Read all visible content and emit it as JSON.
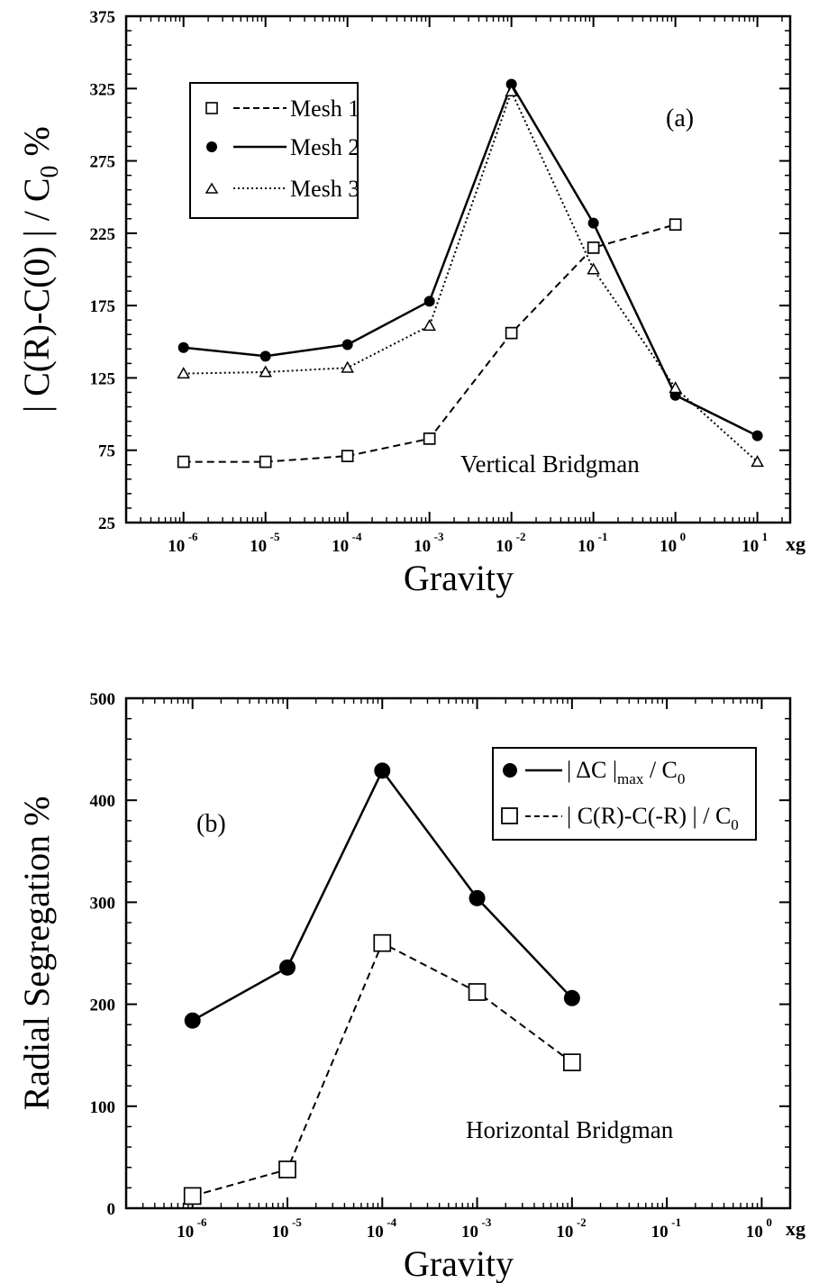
{
  "chart_data": [
    {
      "type": "line",
      "panel_label": "(a)",
      "xlabel": "Gravity",
      "x_unit": "xg",
      "ylabel": "| C(R)-C(0) | / C",
      "ylabel_subscript": "0",
      "ylabel_suffix": " %",
      "x_scale": "log",
      "xlim_exp": [
        -6.7,
        1.4
      ],
      "ylim": [
        25,
        375
      ],
      "x_tick_exponents": [
        "-6",
        "-5",
        "-4",
        "-3",
        "-2",
        "-1",
        "0",
        "1"
      ],
      "y_ticks": [
        "25",
        "75",
        "125",
        "175",
        "225",
        "275",
        "325",
        "375"
      ],
      "annotation": "Vertical Bridgman",
      "legend_position": "top-left",
      "series": [
        {
          "name": "Mesh 1",
          "marker": "open-square",
          "line": "dashed",
          "x_exp": [
            -6,
            -5,
            -4,
            -3,
            -2,
            -1,
            0
          ],
          "values": [
            67,
            67,
            71,
            83,
            156,
            215,
            231
          ]
        },
        {
          "name": "Mesh 2",
          "marker": "filled-circle",
          "line": "solid",
          "x_exp": [
            -6,
            -5,
            -4,
            -3,
            -2,
            -1,
            0,
            1
          ],
          "values": [
            146,
            140,
            148,
            178,
            328,
            232,
            113,
            85
          ]
        },
        {
          "name": "Mesh 3",
          "marker": "open-triangle",
          "line": "dotted",
          "x_exp": [
            -6,
            -5,
            -4,
            -3,
            -2,
            -1,
            0,
            1
          ],
          "values": [
            128,
            129,
            132,
            161,
            323,
            200,
            118,
            67
          ]
        }
      ]
    },
    {
      "type": "line",
      "panel_label": "(b)",
      "xlabel": "Gravity",
      "x_unit": "xg",
      "ylabel": "Radial Segregation %",
      "x_scale": "log",
      "xlim_exp": [
        -6.7,
        0.3
      ],
      "ylim": [
        0,
        500
      ],
      "x_tick_exponents": [
        "-6",
        "-5",
        "-4",
        "-3",
        "-2",
        "-1",
        "0"
      ],
      "y_ticks": [
        "0",
        "100",
        "200",
        "300",
        "400",
        "500"
      ],
      "annotation": "Horizontal Bridgman",
      "legend_position": "top-right",
      "series": [
        {
          "name": "| ΔC |max / C0",
          "marker": "filled-circle",
          "line": "solid",
          "x_exp": [
            -6,
            -5,
            -4,
            -3,
            -2
          ],
          "values": [
            184,
            236,
            429,
            304,
            206
          ]
        },
        {
          "name": "| C(R)-C(-R) | / C0",
          "marker": "open-square",
          "line": "dashed",
          "x_exp": [
            -6,
            -5,
            -4,
            -3,
            -2
          ],
          "values": [
            12,
            38,
            260,
            212,
            143
          ]
        }
      ]
    }
  ]
}
